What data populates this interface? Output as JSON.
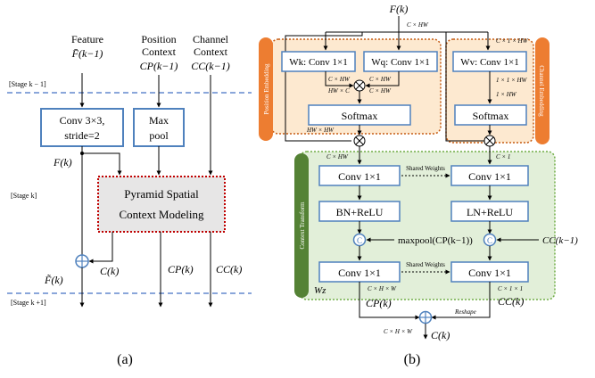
{
  "panel_a": {
    "caption": "(a)",
    "stage_prev": "[Stage k − 1]",
    "stage_cur": "[Stage k]",
    "stage_next": "[Stage k +1]",
    "input_feature_label": "Feature",
    "input_feature_symbol": "F̄(k−1)",
    "input_position_label_1": "Position",
    "input_position_label_2": "Context",
    "input_position_symbol": "CP(k−1)",
    "input_channel_label_1": "Channel",
    "input_channel_label_2": "Context",
    "input_channel_symbol": "CC(k−1)",
    "conv_box_line1": "Conv 3×3,",
    "conv_box_line2": "stride=2",
    "pool_box_line1": "Max",
    "pool_box_line2": "pool",
    "pscm_line1": "Pyramid Spatial",
    "pscm_line2": "Context Modeling",
    "f_k": "F(k)",
    "c_k": "C(k)",
    "out_f": "F̃(k)",
    "out_cp": "CP(k)",
    "out_cc": "CC(k)"
  },
  "panel_b": {
    "caption": "(b)",
    "input_symbol": "F(k)",
    "dim_top": "C × HW",
    "pos_embed_title": "Position Embedding",
    "chan_embed_title": "Channel Embedding",
    "ctx_transform_title": "Context Transform",
    "wk": "Wk: Conv 1×1",
    "wq": "Wq: Conv 1×1",
    "wv": "Wv: Conv 1×1",
    "softmax": "Softmax",
    "conv11": "Conv 1×1",
    "bn_relu": "BN+ReLU",
    "ln_relu": "LN+ReLU",
    "shared_weights": "Shared Weights",
    "maxpool_label": "maxpool(CP(k−1))",
    "cc_in": "CC(k−1)",
    "wz": "Wz",
    "dim_c_hw": "C × HW",
    "dim_hw_c": "HW × C",
    "dim_hw_hw": "HW × HW",
    "dim_c11hw": "C × 1 × HW",
    "dim_11hw": "1 × 1 × HW",
    "dim_1hw": "1 × HW",
    "dim_c1": "C × 1",
    "dim_chw3": "C × H × W",
    "dim_c11": "C × 1 × 1",
    "reshape": "Reshape",
    "out_cp": "CP(k)",
    "out_cc": "CC(k)",
    "out_c": "C(k)"
  },
  "colors": {
    "box_blue": "#4f81bd",
    "dotted_red": "#c00000",
    "dashed_blue": "#4472c4",
    "embed_fill": "#fde9d0",
    "embed_border": "#c55a11",
    "embed_tab": "#ed7d31",
    "transform_fill": "#e2efd9",
    "transform_border": "#70ad47",
    "transform_tab": "#548235",
    "grey_fill": "#e7e6e6"
  }
}
